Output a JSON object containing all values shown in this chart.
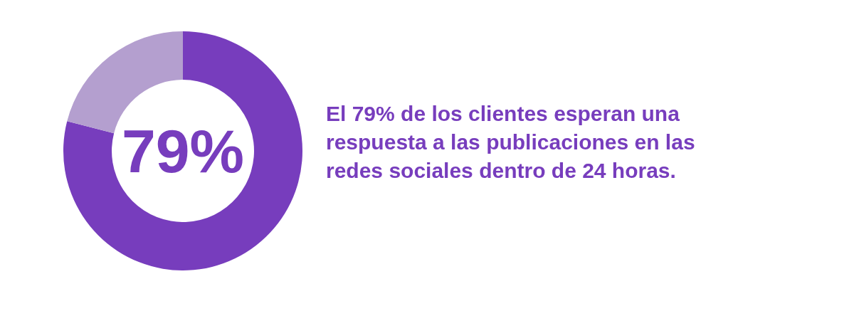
{
  "chart_data": {
    "type": "donut",
    "title": "El 79% de los clientes esperan una respuesta a las publicaciones en las redes sociales dentro de 24 horas.",
    "categories": [
      null,
      null
    ],
    "values": [
      79,
      21
    ],
    "colors": [
      "#773dbd",
      "#b49fcf"
    ],
    "annotations": [
      "79%"
    ]
  }
}
